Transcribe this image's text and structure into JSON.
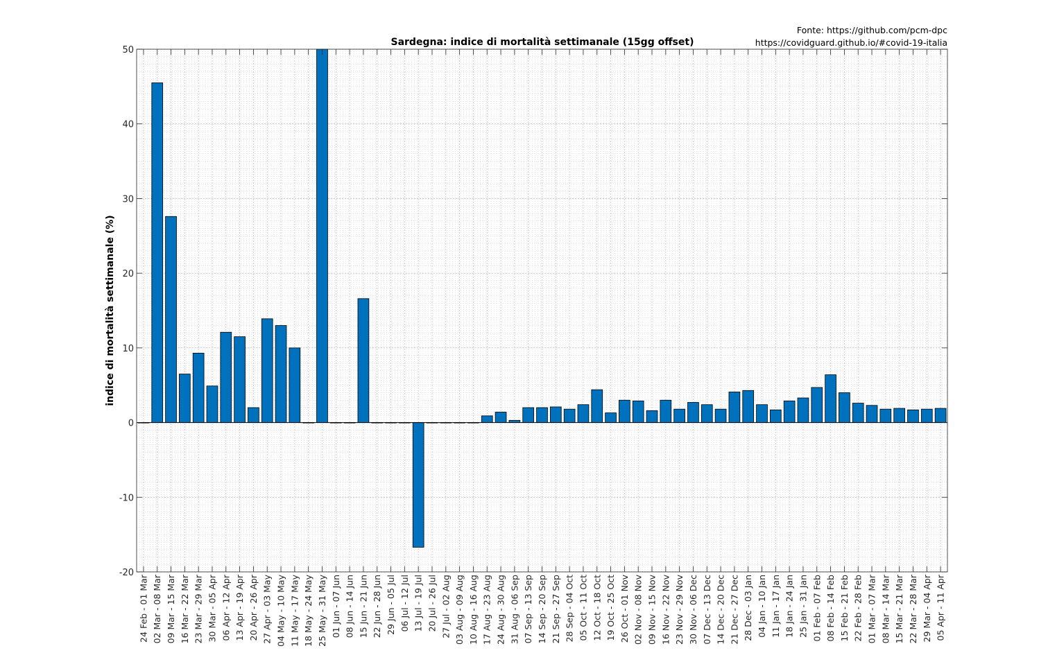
{
  "header": {
    "source_line1": "Fonte: https://github.com/pcm-dpc",
    "source_line2": "https://covidguard.github.io/#covid-19-italia"
  },
  "chart_data": {
    "type": "bar",
    "title": "Sardegna: indice di mortalità settimanale (15gg offset)",
    "xlabel": "",
    "ylabel": "indice di mortalità settimanale (%)",
    "ylim": [
      -20,
      50
    ],
    "yticks": [
      -20,
      -10,
      0,
      10,
      20,
      30,
      40,
      50
    ],
    "grid": "on (major and minor, dotted)",
    "bar_color": "#0072BD",
    "categories": [
      "24 Feb - 01 Mar",
      "02 Mar - 08 Mar",
      "09 Mar - 15 Mar",
      "16 Mar - 22 Mar",
      "23 Mar - 29 Mar",
      "30 Mar - 05 Apr",
      "06 Apr - 12 Apr",
      "13 Apr - 19 Apr",
      "20 Apr - 26 Apr",
      "27 Apr - 03 May",
      "04 May - 10 May",
      "11 May - 17 May",
      "18 May - 24 May",
      "25 May - 31 May",
      "01 Jun - 07 Jun",
      "08 Jun - 14 Jun",
      "15 Jun - 21 Jun",
      "22 Jun - 28 Jun",
      "29 Jun - 05 Jul",
      "06 Jul - 12 Jul",
      "13 Jul - 19 Jul",
      "20 Jul - 26 Jul",
      "27 Jul - 02 Aug",
      "03 Aug - 09 Aug",
      "10 Aug - 16 Aug",
      "17 Aug - 23 Aug",
      "24 Aug - 30 Aug",
      "31 Aug - 06 Sep",
      "07 Sep - 13 Sep",
      "14 Sep - 20 Sep",
      "21 Sep - 27 Sep",
      "28 Sep - 04 Oct",
      "05 Oct - 11 Oct",
      "12 Oct - 18 Oct",
      "19 Oct - 25 Oct",
      "26 Oct - 01 Nov",
      "02 Nov - 08 Nov",
      "09 Nov - 15 Nov",
      "16 Nov - 22 Nov",
      "23 Nov - 29 Nov",
      "30 Nov - 06 Dec",
      "07 Dec - 13 Dec",
      "14 Dec - 20 Dec",
      "21 Dec - 27 Dec",
      "28 Dec - 03 Jan",
      "04 Jan - 10 Jan",
      "11 Jan - 17 Jan",
      "18 Jan - 24 Jan",
      "25 Jan - 31 Jan",
      "01 Feb - 07 Feb",
      "08 Feb - 14 Feb",
      "15 Feb - 21 Feb",
      "22 Feb - 28 Feb",
      "01 Mar - 07 Mar",
      "08 Mar - 14 Mar",
      "15 Mar - 21 Mar",
      "22 Mar - 28 Mar",
      "29 Mar - 04 Apr",
      "05 Apr - 11 Apr"
    ],
    "values": [
      0,
      45.5,
      27.6,
      6.5,
      9.3,
      4.9,
      12.1,
      11.5,
      2.0,
      13.9,
      13.0,
      10.0,
      0,
      50,
      0,
      0,
      16.6,
      0,
      0,
      0,
      -16.7,
      0,
      0,
      0,
      0,
      0.9,
      1.4,
      0.3,
      2.0,
      2.0,
      2.1,
      1.8,
      2.4,
      4.4,
      1.3,
      3.0,
      2.9,
      1.6,
      3.0,
      1.8,
      2.7,
      2.4,
      1.8,
      4.1,
      4.3,
      2.4,
      1.7,
      2.9,
      3.3,
      4.7,
      6.4,
      4.0,
      2.6,
      2.3,
      1.8,
      1.9,
      1.7,
      1.8,
      1.9
    ]
  }
}
